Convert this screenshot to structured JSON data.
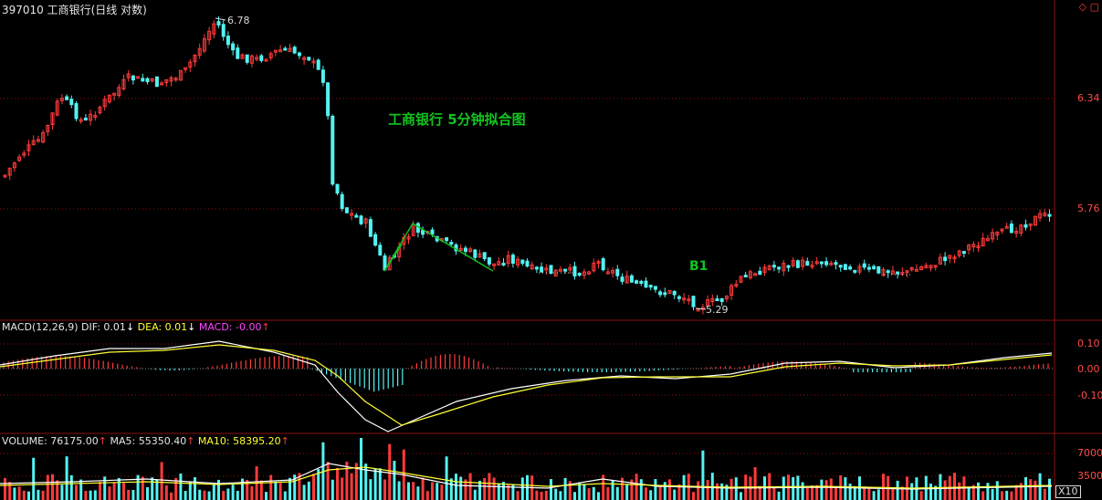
{
  "header": {
    "title": "397010 工商银行(日线 对数)",
    "window_icons": [
      "restore-icon",
      "maximize-icon"
    ]
  },
  "price_panel": {
    "annotation": "工商银行 5分钟拟合图",
    "marker": "B1",
    "high_label": "6.78",
    "low_label": "5.29",
    "axis_ticks": [
      "6.34",
      "5.76"
    ]
  },
  "macd_panel": {
    "label": "MACD(12,26,9)",
    "dif": "DIF: 0.01",
    "dea": "DEA: 0.01",
    "macd": "MACD: -0.00",
    "axis_ticks": [
      "0.10",
      "0.00",
      "-0.10"
    ]
  },
  "volume_panel": {
    "volume": "VOLUME: 76175.00",
    "ma5": "MA5: 55350.40",
    "ma10": "MA10: 58395.20",
    "axis_ticks": [
      "70000",
      "35000"
    ],
    "scale_badge": "X10"
  },
  "colors": {
    "up": "#ff3b3b",
    "down": "#54f2f2",
    "grid": "#8b1010",
    "ma_white": "#ffffff",
    "ma_yellow": "#ffff33",
    "label_magenta": "#ff44ff",
    "annotation_green": "#12c41f"
  }
}
